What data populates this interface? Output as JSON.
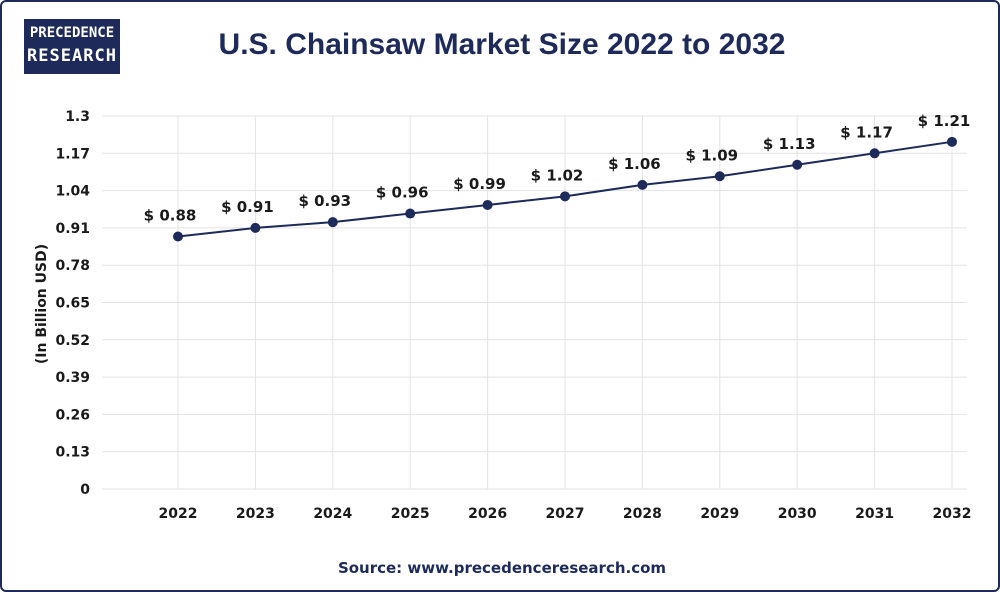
{
  "logo": {
    "line1": "PRECEDENCE",
    "line2": "RESEARCH"
  },
  "source": "Source: www.precedenceresearch.com",
  "colors": {
    "primary": "#1e2a5a",
    "grid": "#e3e3e3",
    "text": "#1a1a1a"
  },
  "chart_data": {
    "type": "line",
    "title": "U.S. Chainsaw Market Size 2022 to 2032",
    "xlabel": "",
    "ylabel": "(In Billion USD)",
    "categories": [
      "2022",
      "2023",
      "2024",
      "2025",
      "2026",
      "2027",
      "2028",
      "2029",
      "2030",
      "2031",
      "2032"
    ],
    "series": [
      {
        "name": "U.S. Chainsaw Market Size",
        "values": [
          0.88,
          0.91,
          0.93,
          0.96,
          0.99,
          1.02,
          1.06,
          1.09,
          1.13,
          1.17,
          1.21
        ],
        "labels": [
          "$ 0.88",
          "$ 0.91",
          "$ 0.93",
          "$ 0.96",
          "$ 0.99",
          "$ 1.02",
          "$ 1.06",
          "$ 1.09",
          "$ 1.13",
          "$ 1.17",
          "$ 1.21"
        ]
      }
    ],
    "yticks": [
      "0",
      "0.13",
      "0.26",
      "0.39",
      "0.52",
      "0.65",
      "0.78",
      "0.91",
      "1.04",
      "1.17",
      "1.3"
    ],
    "ylim": [
      0,
      1.3
    ],
    "grid": true
  }
}
